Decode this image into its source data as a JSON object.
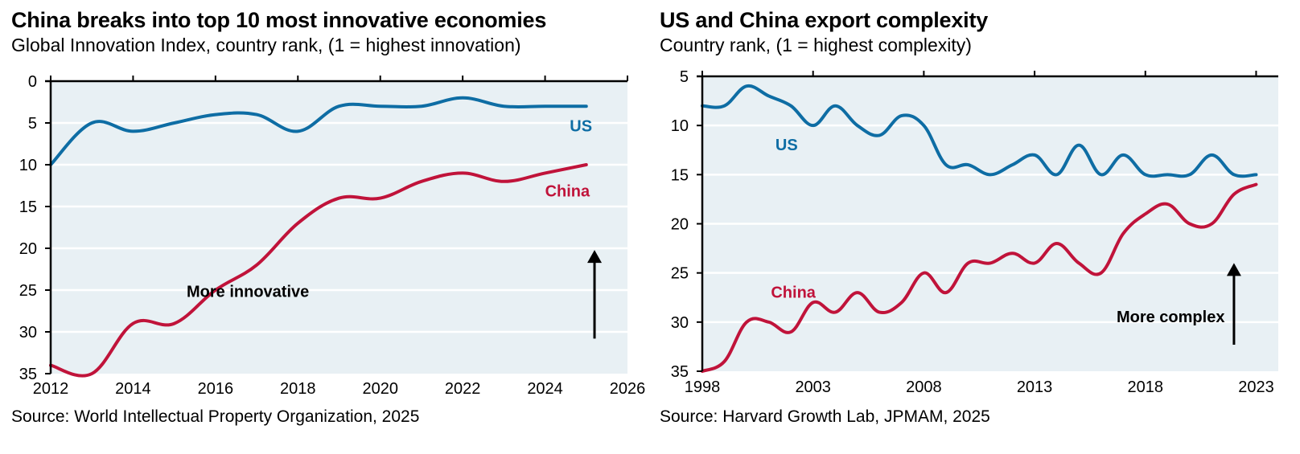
{
  "chart_data": [
    {
      "type": "line",
      "title": "China breaks into top 10 most innovative economies",
      "subtitle": "Global Innovation Index, country rank, (1 = highest innovation)",
      "source": "Source: World Intellectual Property Organization, 2025",
      "xlabel": "",
      "ylabel": "",
      "x": [
        2012,
        2013,
        2014,
        2015,
        2016,
        2017,
        2018,
        2019,
        2020,
        2021,
        2022,
        2023,
        2024,
        2025
      ],
      "xlim": [
        2012,
        2026
      ],
      "xticks": [
        "2012",
        "2014",
        "2016",
        "2018",
        "2020",
        "2022",
        "2024",
        "2026"
      ],
      "xtick_values": [
        2012,
        2014,
        2016,
        2018,
        2020,
        2022,
        2024,
        2026
      ],
      "ylim": [
        0,
        35
      ],
      "y_inverted": true,
      "yticks": [
        "0",
        "5",
        "10",
        "15",
        "20",
        "25",
        "30",
        "35"
      ],
      "ytick_values": [
        0,
        5,
        10,
        15,
        20,
        25,
        30,
        35
      ],
      "grid": "horizontal",
      "background": "#e8f0f4",
      "series": [
        {
          "name": "US",
          "color": "#0e6da4",
          "values": [
            10,
            5,
            6,
            5,
            4,
            4,
            6,
            3,
            3,
            3,
            2,
            3,
            3,
            3
          ],
          "label_at": [
            2024.6,
            6
          ]
        },
        {
          "name": "China",
          "color": "#c0133a",
          "values": [
            34,
            35,
            29,
            29,
            25,
            22,
            17,
            14,
            14,
            12,
            11,
            12,
            11,
            10
          ],
          "label_at": [
            2024.0,
            13.8
          ]
        }
      ],
      "annotation": {
        "text": "More innovative",
        "arrow": "up",
        "text_at": [
          2015.3,
          25.8
        ],
        "arrow_x": 2025.2,
        "arrow_from": 30.8,
        "arrow_to": 20.2
      }
    },
    {
      "type": "line",
      "title": "US and China export complexity",
      "subtitle": "Country rank, (1 = highest complexity)",
      "source": "Source: Harvard Growth Lab, JPMAM, 2025",
      "xlabel": "",
      "ylabel": "",
      "x": [
        1998,
        1999,
        2000,
        2001,
        2002,
        2003,
        2004,
        2005,
        2006,
        2007,
        2008,
        2009,
        2010,
        2011,
        2012,
        2013,
        2014,
        2015,
        2016,
        2017,
        2018,
        2019,
        2020,
        2021,
        2022,
        2023
      ],
      "xlim": [
        1998,
        2024
      ],
      "xticks": [
        "1998",
        "2003",
        "2008",
        "2013",
        "2018",
        "2023"
      ],
      "xtick_values": [
        1998,
        2003,
        2008,
        2013,
        2018,
        2023
      ],
      "ylim": [
        5,
        35
      ],
      "y_inverted": true,
      "yticks": [
        "5",
        "10",
        "15",
        "20",
        "25",
        "30",
        "35"
      ],
      "ytick_values": [
        5,
        10,
        15,
        20,
        25,
        30,
        35
      ],
      "grid": "horizontal",
      "background": "#e8f0f4",
      "series": [
        {
          "name": "US",
          "color": "#0e6da4",
          "values": [
            8,
            8,
            6,
            7,
            8,
            10,
            8,
            10,
            11,
            9,
            10,
            14,
            14,
            15,
            14,
            13,
            15,
            12,
            15,
            13,
            15,
            15,
            15,
            13,
            15,
            15
          ],
          "label_at": [
            2001.3,
            12.5
          ]
        },
        {
          "name": "China",
          "color": "#c0133a",
          "values": [
            35,
            34,
            30,
            30,
            31,
            28,
            29,
            27,
            29,
            28,
            25,
            27,
            24,
            24,
            23,
            24,
            22,
            24,
            25,
            21,
            19,
            18,
            20,
            20,
            17,
            16
          ],
          "label_at": [
            2001.1,
            27.5
          ]
        }
      ],
      "annotation": {
        "text": "More complex",
        "arrow": "up",
        "text_at": [
          2016.7,
          30.0
        ],
        "arrow_x": 2022.0,
        "arrow_from": 32.3,
        "arrow_to": 24.0
      }
    }
  ]
}
